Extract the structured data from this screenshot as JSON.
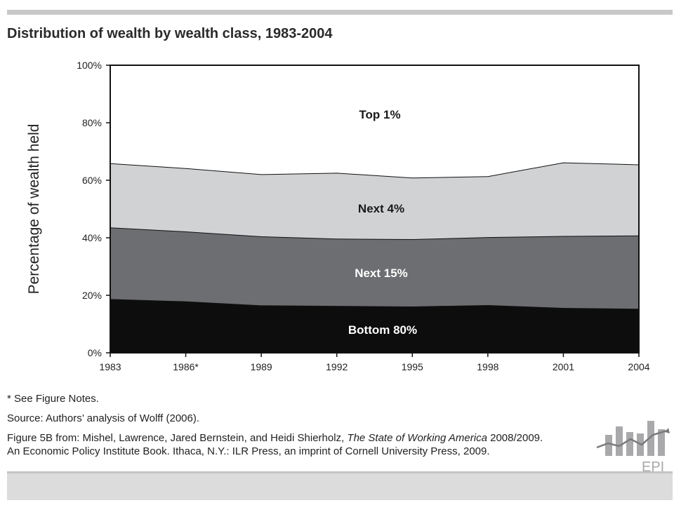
{
  "title": "Distribution of wealth by wealth class, 1983-2004",
  "chart_data": {
    "type": "area",
    "stacked": true,
    "x": [
      "1983",
      "1986*",
      "1989",
      "1992",
      "1995",
      "1998",
      "2001",
      "2004"
    ],
    "ylabel": "Percentage of wealth held",
    "ylim": [
      0,
      100
    ],
    "yticks": [
      "0%",
      "20%",
      "40%",
      "60%",
      "80%",
      "100%"
    ],
    "grid": false,
    "legend": "none",
    "series": [
      {
        "name": "Bottom 80%",
        "values": [
          18.7,
          17.9,
          16.5,
          16.3,
          16.1,
          16.6,
          15.6,
          15.3
        ],
        "color": "#0d0d0d",
        "label_color": "#ffffff"
      },
      {
        "name": "Next 15%",
        "values": [
          24.9,
          24.3,
          24.0,
          23.4,
          23.4,
          23.6,
          25.0,
          25.5
        ],
        "color": "#6d6e71",
        "label_color": "#ffffff"
      },
      {
        "name": "Next 4%",
        "values": [
          22.3,
          22.0,
          21.6,
          22.9,
          21.4,
          21.2,
          25.6,
          24.7
        ],
        "color": "#d1d2d4",
        "label_color": "#1a1a1a"
      },
      {
        "name": "Top 1%",
        "values": [
          34.1,
          35.8,
          37.9,
          37.4,
          39.1,
          38.6,
          33.8,
          34.5
        ],
        "color": "#ffffff",
        "label_color": "#1a1a1a"
      }
    ]
  },
  "notes": {
    "see_notes": "*  See Figure Notes.",
    "source": "Source: Authors’ analysis of Wolff (2006).",
    "figure_prefix": "Figure 5B from: Mishel, Lawrence, Jared Bernstein, and Heidi Shierholz, ",
    "book_title": "The State of Working America",
    "figure_suffix": " 2008/2009.",
    "publisher": "An Economic Policy Institute Book. Ithaca, N.Y.: ILR Press, an imprint of Cornell University Press, 2009."
  },
  "logo": {
    "text": "EPI",
    "icon": "bar-chart-trend-logo"
  }
}
